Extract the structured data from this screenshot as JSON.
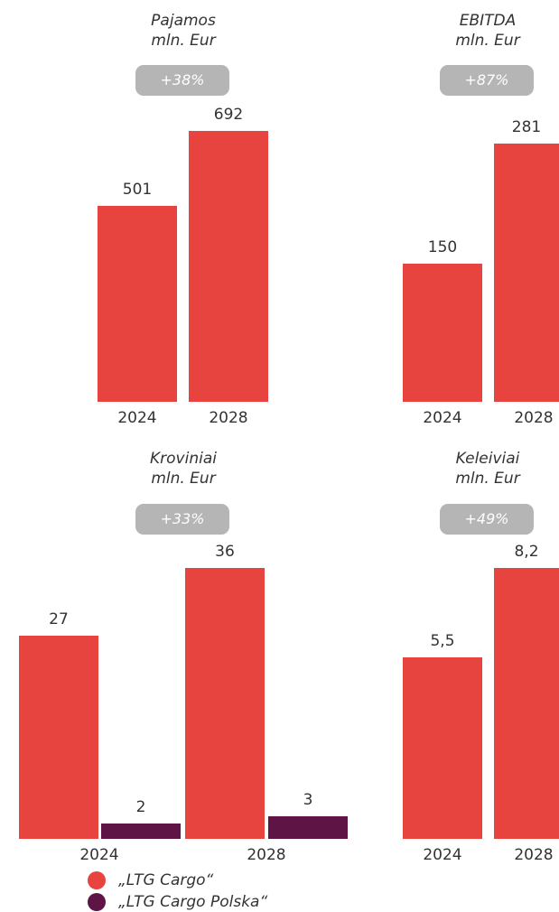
{
  "colors": {
    "primary": "#e8443f",
    "secondary": "#5e1444",
    "badge_bg": "#b5b5b5",
    "badge_text": "#ffffff",
    "text": "#333333"
  },
  "chart_data": [
    {
      "type": "bar",
      "title": "Pajamos",
      "subtitle": "mln. Eur",
      "change": "+38%",
      "categories": [
        "2024",
        "2028"
      ],
      "series": [
        {
          "values": [
            501,
            692
          ],
          "labels": [
            "501",
            "692"
          ]
        }
      ]
    },
    {
      "type": "bar",
      "title": "EBITDA",
      "subtitle": "mln. Eur",
      "change": "+87%",
      "categories": [
        "2024",
        "2028"
      ],
      "series": [
        {
          "values": [
            150,
            281
          ],
          "labels": [
            "150",
            "281"
          ]
        }
      ]
    },
    {
      "type": "bar",
      "title": "Kroviniai",
      "subtitle": "mln. Eur",
      "change": "+33%",
      "categories": [
        "2024",
        "2028"
      ],
      "series": [
        {
          "name": "„LTG Cargo“",
          "values": [
            27,
            36
          ],
          "labels": [
            "27",
            "36"
          ]
        },
        {
          "name": "„LTG Cargo Polska“",
          "values": [
            2,
            3
          ],
          "labels": [
            "2",
            "3"
          ]
        }
      ]
    },
    {
      "type": "bar",
      "title": "Keleiviai",
      "subtitle": "mln. Eur",
      "change": "+49%",
      "categories": [
        "2024",
        "2028"
      ],
      "series": [
        {
          "values": [
            5.5,
            8.2
          ],
          "labels": [
            "5,5",
            "8,2"
          ]
        }
      ]
    }
  ],
  "legend": [
    {
      "label": "„LTG Cargo“",
      "color": "#e8443f"
    },
    {
      "label": "„LTG Cargo Polska“",
      "color": "#5e1444"
    }
  ]
}
